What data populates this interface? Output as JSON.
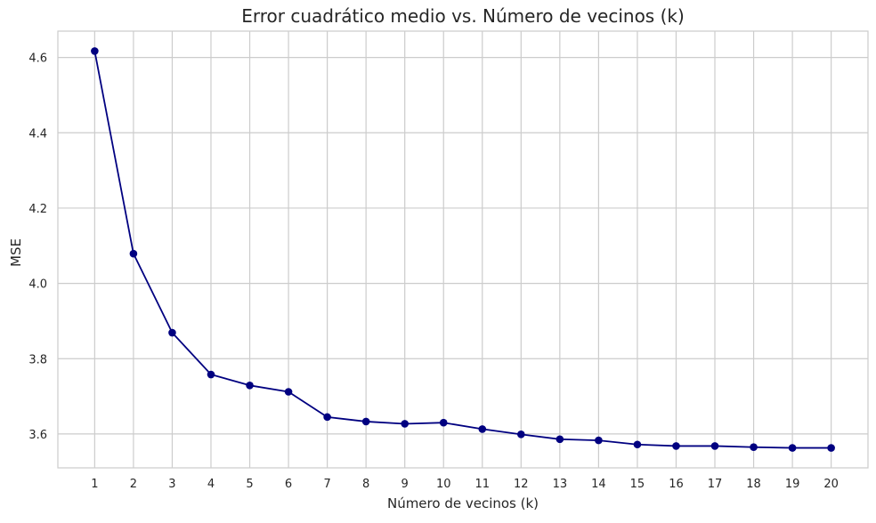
{
  "chart_data": {
    "type": "line",
    "title": "Error cuadrático medio vs. Número de vecinos (k)",
    "xlabel": "Número de vecinos (k)",
    "ylabel": "MSE",
    "x": [
      1,
      2,
      3,
      4,
      5,
      6,
      7,
      8,
      9,
      10,
      11,
      12,
      13,
      14,
      15,
      16,
      17,
      18,
      19,
      20
    ],
    "series": [
      {
        "values": [
          4.617,
          4.079,
          3.869,
          3.758,
          3.729,
          3.712,
          3.645,
          3.633,
          3.627,
          3.63,
          3.613,
          3.599,
          3.586,
          3.583,
          3.572,
          3.568,
          3.568,
          3.565,
          3.563,
          3.563
        ],
        "color": "#000080",
        "marker": "circle"
      }
    ],
    "xticks": [
      "1",
      "2",
      "3",
      "4",
      "5",
      "6",
      "7",
      "8",
      "9",
      "10",
      "11",
      "12",
      "13",
      "14",
      "15",
      "16",
      "17",
      "18",
      "19",
      "20"
    ],
    "yticks": [
      "3.6",
      "3.8",
      "4.0",
      "4.2",
      "4.4",
      "4.6"
    ],
    "ytick_values": [
      3.6,
      3.8,
      4.0,
      4.2,
      4.4,
      4.6
    ],
    "xlim": [
      0.05,
      20.95
    ],
    "ylim": [
      3.51,
      4.67
    ],
    "grid": true,
    "grid_color": "#cccccc",
    "spine_color": "#cccccc",
    "background": "#ffffff"
  }
}
